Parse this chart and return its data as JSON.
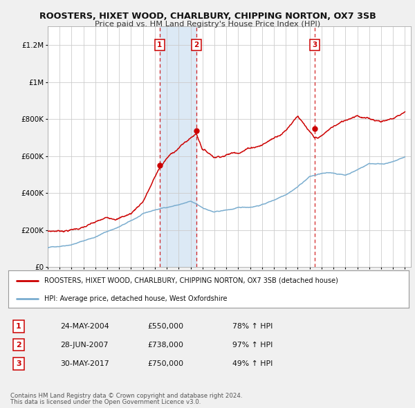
{
  "title": "ROOSTERS, HIXET WOOD, CHARLBURY, CHIPPING NORTON, OX7 3SB",
  "subtitle": "Price paid vs. HM Land Registry's House Price Index (HPI)",
  "bg_color": "#f0f0f0",
  "plot_bg_color": "#ffffff",
  "red_line_color": "#cc0000",
  "blue_line_color": "#7aadcf",
  "highlight_bg": "#dce9f5",
  "dashed_line_color": "#cc0000",
  "legend_line1": "ROOSTERS, HIXET WOOD, CHARLBURY, CHIPPING NORTON, OX7 3SB (detached house)",
  "legend_line2": "HPI: Average price, detached house, West Oxfordshire",
  "transactions": [
    {
      "num": 1,
      "date": "24-MAY-2004",
      "price": "£550,000",
      "pct": "78% ↑ HPI",
      "year": 2004.39,
      "price_val": 550000
    },
    {
      "num": 2,
      "date": "28-JUN-2007",
      "price": "£738,000",
      "pct": "97% ↑ HPI",
      "year": 2007.49,
      "price_val": 738000
    },
    {
      "num": 3,
      "date": "30-MAY-2017",
      "price": "£750,000",
      "pct": "49% ↑ HPI",
      "year": 2017.41,
      "price_val": 750000
    }
  ],
  "footer1": "Contains HM Land Registry data © Crown copyright and database right 2024.",
  "footer2": "This data is licensed under the Open Government Licence v3.0.",
  "ylim": [
    0,
    1300000
  ],
  "yticks": [
    0,
    200000,
    400000,
    600000,
    800000,
    1000000,
    1200000
  ],
  "ytick_labels": [
    "£0",
    "£200K",
    "£400K",
    "£600K",
    "£800K",
    "£1M",
    "£1.2M"
  ],
  "xmin": 1995,
  "xmax": 2025.5,
  "hpi_knots_x": [
    1995,
    1996,
    1997,
    1998,
    1999,
    2000,
    2001,
    2002,
    2003,
    2004,
    2005,
    2006,
    2007,
    2008,
    2009,
    2010,
    2011,
    2012,
    2013,
    2014,
    2015,
    2016,
    2017,
    2018,
    2019,
    2020,
    2021,
    2022,
    2023,
    2024,
    2025
  ],
  "hpi_knots_y": [
    105000,
    115000,
    128000,
    148000,
    170000,
    200000,
    225000,
    255000,
    290000,
    310000,
    325000,
    340000,
    355000,
    320000,
    295000,
    305000,
    315000,
    320000,
    335000,
    360000,
    395000,
    440000,
    495000,
    510000,
    510000,
    500000,
    530000,
    565000,
    565000,
    575000,
    600000
  ],
  "red_knots_x": [
    1995,
    1996,
    1997,
    1998,
    1999,
    2000,
    2001,
    2002,
    2003,
    2004.39,
    2005,
    2006,
    2007.49,
    2008,
    2009,
    2010,
    2011,
    2012,
    2013,
    2014,
    2015,
    2016,
    2017.41,
    2018,
    2019,
    2020,
    2021,
    2022,
    2023,
    2024,
    2025
  ],
  "red_knots_y": [
    195000,
    200000,
    210000,
    225000,
    245000,
    265000,
    275000,
    300000,
    370000,
    550000,
    600000,
    660000,
    738000,
    660000,
    620000,
    640000,
    660000,
    690000,
    710000,
    750000,
    800000,
    890000,
    750000,
    760000,
    810000,
    840000,
    880000,
    860000,
    855000,
    870000,
    910000
  ]
}
